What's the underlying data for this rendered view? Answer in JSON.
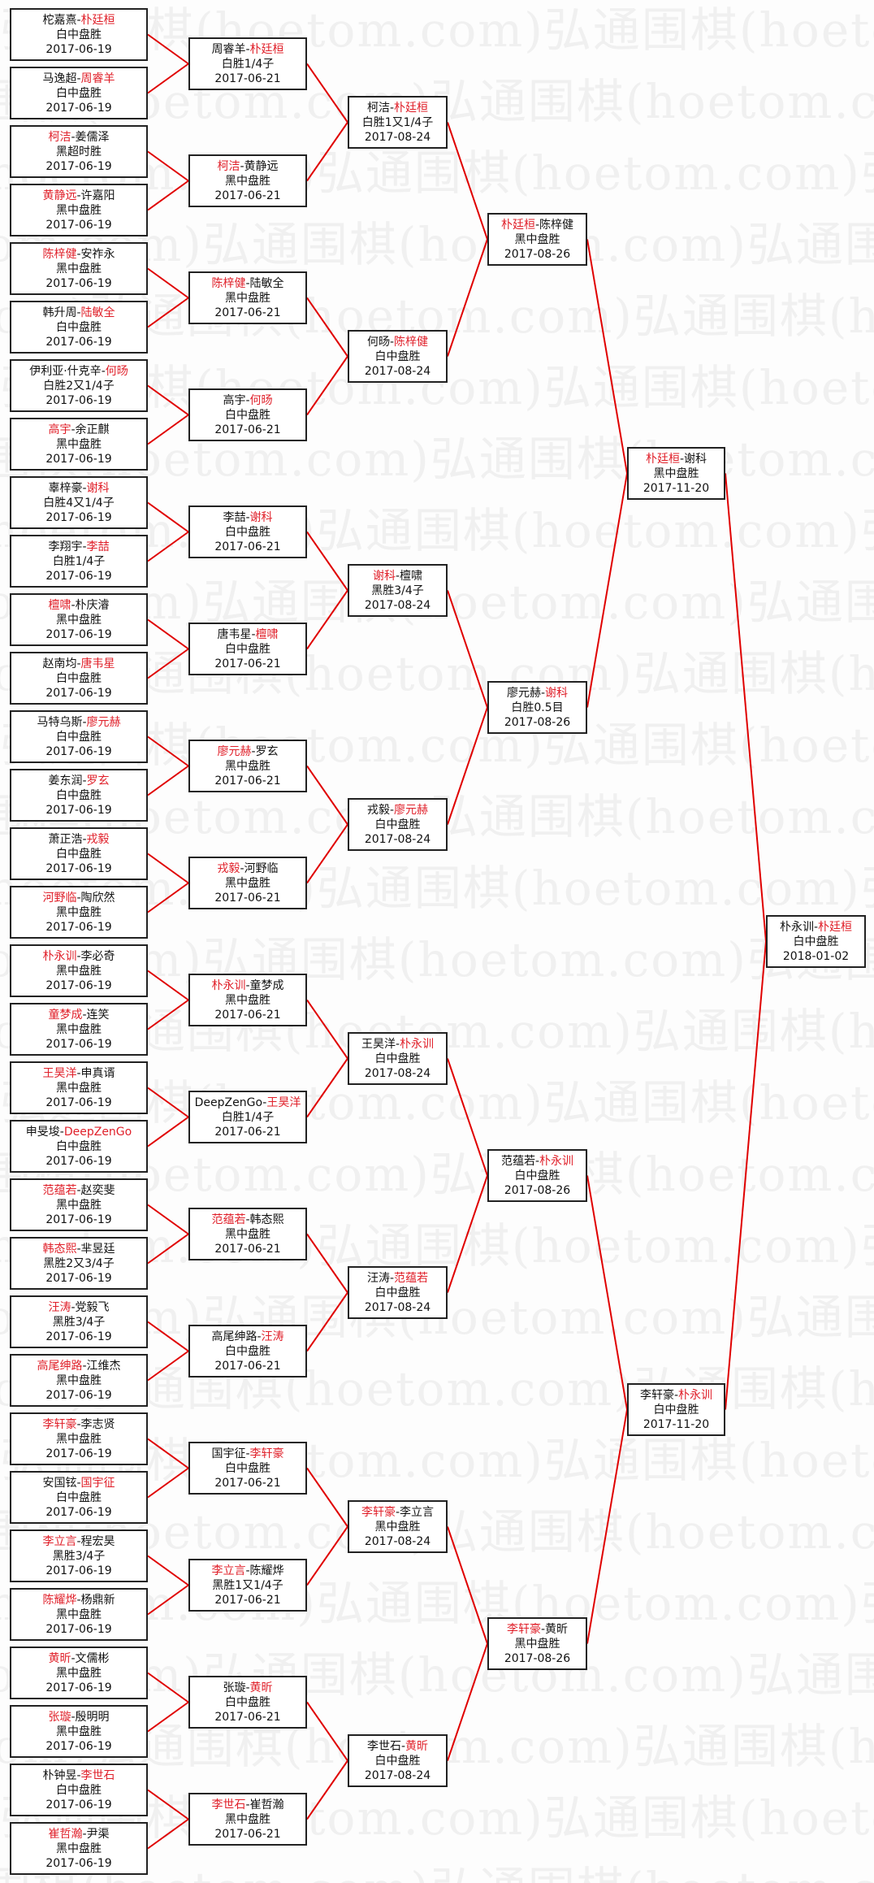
{
  "watermark": "弘通围棋(hoetom.com)",
  "colors": {
    "winner": "#e0202a",
    "connector": "#e00000",
    "border": "#222222"
  },
  "rounds": [
    {
      "matches": [
        {
          "players": [
            "柁嘉熹",
            "朴廷桓"
          ],
          "winner": 1,
          "result": "白中盘胜",
          "date": "2017-06-19"
        },
        {
          "players": [
            "马逸超",
            "周睿羊"
          ],
          "winner": 1,
          "result": "白中盘胜",
          "date": "2017-06-19"
        },
        {
          "players": [
            "柯洁",
            "姜儒泽"
          ],
          "winner": 0,
          "result": "黑超时胜",
          "date": "2017-06-19"
        },
        {
          "players": [
            "黄静远",
            "许嘉阳"
          ],
          "winner": 0,
          "result": "黑中盘胜",
          "date": "2017-06-19"
        },
        {
          "players": [
            "陈梓健",
            "安祚永"
          ],
          "winner": 0,
          "result": "黑中盘胜",
          "date": "2017-06-19"
        },
        {
          "players": [
            "韩升周",
            "陆敏全"
          ],
          "winner": 1,
          "result": "白中盘胜",
          "date": "2017-06-19"
        },
        {
          "players": [
            "伊利亚·什克辛",
            "何旸"
          ],
          "winner": 1,
          "result": "白胜2又1/4子",
          "date": "2017-06-19"
        },
        {
          "players": [
            "高宇",
            "余正麒"
          ],
          "winner": 0,
          "result": "黑中盘胜",
          "date": "2017-06-19"
        },
        {
          "players": [
            "辜梓豪",
            "谢科"
          ],
          "winner": 1,
          "result": "白胜4又1/4子",
          "date": "2017-06-19"
        },
        {
          "players": [
            "李翔宇",
            "李喆"
          ],
          "winner": 1,
          "result": "白胜1/4子",
          "date": "2017-06-19"
        },
        {
          "players": [
            "檀啸",
            "朴庆濬"
          ],
          "winner": 0,
          "result": "黑中盘胜",
          "date": "2017-06-19"
        },
        {
          "players": [
            "赵南均",
            "唐韦星"
          ],
          "winner": 1,
          "result": "白中盘胜",
          "date": "2017-06-19"
        },
        {
          "players": [
            "马特乌斯",
            "廖元赫"
          ],
          "winner": 1,
          "result": "白中盘胜",
          "date": "2017-06-19"
        },
        {
          "players": [
            "姜东润",
            "罗玄"
          ],
          "winner": 1,
          "result": "白中盘胜",
          "date": "2017-06-19"
        },
        {
          "players": [
            "萧正浩",
            "戎毅"
          ],
          "winner": 1,
          "result": "白中盘胜",
          "date": "2017-06-19"
        },
        {
          "players": [
            "河野临",
            "陶欣然"
          ],
          "winner": 0,
          "result": "黑中盘胜",
          "date": "2017-06-19"
        },
        {
          "players": [
            "朴永训",
            "李必奇"
          ],
          "winner": 0,
          "result": "黑中盘胜",
          "date": "2017-06-19"
        },
        {
          "players": [
            "童梦成",
            "连笑"
          ],
          "winner": 0,
          "result": "黑中盘胜",
          "date": "2017-06-19"
        },
        {
          "players": [
            "王昊洋",
            "申真谞"
          ],
          "winner": 0,
          "result": "黑中盘胜",
          "date": "2017-06-19"
        },
        {
          "players": [
            "申旻埈",
            "DeepZenGo"
          ],
          "winner": 1,
          "result": "白中盘胜",
          "date": "2017-06-19"
        },
        {
          "players": [
            "范蕴若",
            "赵奕斐"
          ],
          "winner": 0,
          "result": "黑中盘胜",
          "date": "2017-06-19"
        },
        {
          "players": [
            "韩态熙",
            "芈昱廷"
          ],
          "winner": 0,
          "result": "黑胜2又3/4子",
          "date": "2017-06-19"
        },
        {
          "players": [
            "汪涛",
            "党毅飞"
          ],
          "winner": 0,
          "result": "黑胜3/4子",
          "date": "2017-06-19"
        },
        {
          "players": [
            "高尾绅路",
            "江维杰"
          ],
          "winner": 0,
          "result": "黑中盘胜",
          "date": "2017-06-19"
        },
        {
          "players": [
            "李轩豪",
            "李志贤"
          ],
          "winner": 0,
          "result": "黑中盘胜",
          "date": "2017-06-19"
        },
        {
          "players": [
            "安国铉",
            "国宇征"
          ],
          "winner": 1,
          "result": "白中盘胜",
          "date": "2017-06-19"
        },
        {
          "players": [
            "李立言",
            "程宏昊"
          ],
          "winner": 0,
          "result": "黑胜3/4子",
          "date": "2017-06-19"
        },
        {
          "players": [
            "陈耀烨",
            "杨鼎新"
          ],
          "winner": 0,
          "result": "黑中盘胜",
          "date": "2017-06-19"
        },
        {
          "players": [
            "黄昕",
            "文儒彬"
          ],
          "winner": 0,
          "result": "黑中盘胜",
          "date": "2017-06-19"
        },
        {
          "players": [
            "张璇",
            "殷明明"
          ],
          "winner": 0,
          "result": "黑中盘胜",
          "date": "2017-06-19"
        },
        {
          "players": [
            "朴钟昱",
            "李世石"
          ],
          "winner": 1,
          "result": "白中盘胜",
          "date": "2017-06-19"
        },
        {
          "players": [
            "崔哲瀚",
            "尹渠"
          ],
          "winner": 0,
          "result": "黑中盘胜",
          "date": "2017-06-19"
        }
      ]
    },
    {
      "matches": [
        {
          "players": [
            "周睿羊",
            "朴廷桓"
          ],
          "winner": 1,
          "result": "白胜1/4子",
          "date": "2017-06-21"
        },
        {
          "players": [
            "柯洁",
            "黄静远"
          ],
          "winner": 0,
          "result": "黑中盘胜",
          "date": "2017-06-21"
        },
        {
          "players": [
            "陈梓健",
            "陆敏全"
          ],
          "winner": 0,
          "result": "黑中盘胜",
          "date": "2017-06-21"
        },
        {
          "players": [
            "高宇",
            "何旸"
          ],
          "winner": 1,
          "result": "白中盘胜",
          "date": "2017-06-21"
        },
        {
          "players": [
            "李喆",
            "谢科"
          ],
          "winner": 1,
          "result": "白中盘胜",
          "date": "2017-06-21"
        },
        {
          "players": [
            "唐韦星",
            "檀啸"
          ],
          "winner": 1,
          "result": "白中盘胜",
          "date": "2017-06-21"
        },
        {
          "players": [
            "廖元赫",
            "罗玄"
          ],
          "winner": 0,
          "result": "黑中盘胜",
          "date": "2017-06-21"
        },
        {
          "players": [
            "戎毅",
            "河野临"
          ],
          "winner": 0,
          "result": "黑中盘胜",
          "date": "2017-06-21"
        },
        {
          "players": [
            "朴永训",
            "童梦成"
          ],
          "winner": 0,
          "result": "黑中盘胜",
          "date": "2017-06-21"
        },
        {
          "players": [
            "DeepZenGo",
            "王昊洋"
          ],
          "winner": 1,
          "result": "白胜1/4子",
          "date": "2017-06-21"
        },
        {
          "players": [
            "范蕴若",
            "韩态熙"
          ],
          "winner": 0,
          "result": "黑中盘胜",
          "date": "2017-06-21"
        },
        {
          "players": [
            "高尾绅路",
            "汪涛"
          ],
          "winner": 1,
          "result": "白中盘胜",
          "date": "2017-06-21"
        },
        {
          "players": [
            "国宇征",
            "李轩豪"
          ],
          "winner": 1,
          "result": "白中盘胜",
          "date": "2017-06-21"
        },
        {
          "players": [
            "李立言",
            "陈耀烨"
          ],
          "winner": 0,
          "result": "黑胜1又1/4子",
          "date": "2017-06-21"
        },
        {
          "players": [
            "张璇",
            "黄昕"
          ],
          "winner": 1,
          "result": "白中盘胜",
          "date": "2017-06-21"
        },
        {
          "players": [
            "李世石",
            "崔哲瀚"
          ],
          "winner": 0,
          "result": "黑中盘胜",
          "date": "2017-06-21"
        }
      ]
    },
    {
      "matches": [
        {
          "players": [
            "柯洁",
            "朴廷桓"
          ],
          "winner": 1,
          "result": "白胜1又1/4子",
          "date": "2017-08-24"
        },
        {
          "players": [
            "何旸",
            "陈梓健"
          ],
          "winner": 1,
          "result": "白中盘胜",
          "date": "2017-08-24"
        },
        {
          "players": [
            "谢科",
            "檀啸"
          ],
          "winner": 0,
          "result": "黑胜3/4子",
          "date": "2017-08-24"
        },
        {
          "players": [
            "戎毅",
            "廖元赫"
          ],
          "winner": 1,
          "result": "白中盘胜",
          "date": "2017-08-24"
        },
        {
          "players": [
            "王昊洋",
            "朴永训"
          ],
          "winner": 1,
          "result": "白中盘胜",
          "date": "2017-08-24"
        },
        {
          "players": [
            "汪涛",
            "范蕴若"
          ],
          "winner": 1,
          "result": "白中盘胜",
          "date": "2017-08-24"
        },
        {
          "players": [
            "李轩豪",
            "李立言"
          ],
          "winner": 0,
          "result": "黑中盘胜",
          "date": "2017-08-24"
        },
        {
          "players": [
            "李世石",
            "黄昕"
          ],
          "winner": 1,
          "result": "白中盘胜",
          "date": "2017-08-24"
        }
      ]
    },
    {
      "matches": [
        {
          "players": [
            "朴廷桓",
            "陈梓健"
          ],
          "winner": 0,
          "result": "黑中盘胜",
          "date": "2017-08-26"
        },
        {
          "players": [
            "廖元赫",
            "谢科"
          ],
          "winner": 1,
          "result": "白胜0.5目",
          "date": "2017-08-26"
        },
        {
          "players": [
            "范蕴若",
            "朴永训"
          ],
          "winner": 1,
          "result": "白中盘胜",
          "date": "2017-08-26"
        },
        {
          "players": [
            "李轩豪",
            "黄昕"
          ],
          "winner": 0,
          "result": "黑中盘胜",
          "date": "2017-08-26"
        }
      ]
    },
    {
      "matches": [
        {
          "players": [
            "朴廷桓",
            "谢科"
          ],
          "winner": 0,
          "result": "黑中盘胜",
          "date": "2017-11-20"
        },
        {
          "players": [
            "李轩豪",
            "朴永训"
          ],
          "winner": 1,
          "result": "白中盘胜",
          "date": "2017-11-20"
        }
      ]
    },
    {
      "matches": [
        {
          "players": [
            "朴永训",
            "朴廷桓"
          ],
          "winner": 1,
          "result": "白中盘胜",
          "date": "2018-01-02"
        }
      ]
    }
  ]
}
